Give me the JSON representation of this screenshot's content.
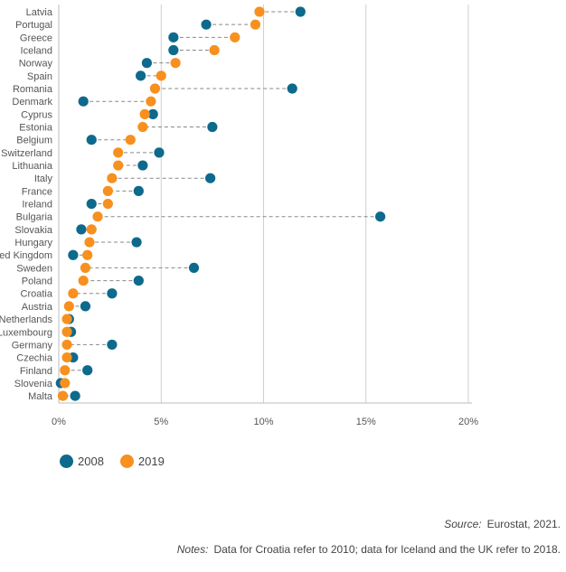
{
  "chart_data": {
    "type": "dumbbell",
    "categories": [
      "Latvia",
      "Portugal",
      "Greece",
      "Iceland",
      "Norway",
      "Spain",
      "Romania",
      "Denmark",
      "Cyprus",
      "Estonia",
      "Belgium",
      "Switzerland",
      "Lithuania",
      "Italy",
      "France",
      "Ireland",
      "Bulgaria",
      "Slovakia",
      "Hungary",
      "United Kingdom",
      "Sweden",
      "Poland",
      "Croatia",
      "Austria",
      "Netherlands",
      "Luxembourg",
      "Germany",
      "Czechia",
      "Finland",
      "Slovenia",
      "Malta"
    ],
    "series": [
      {
        "name": "2008",
        "color": "#0d6a8c",
        "values": [
          11.8,
          7.2,
          5.6,
          5.6,
          4.3,
          4.0,
          11.4,
          1.2,
          4.6,
          7.5,
          1.6,
          4.9,
          4.1,
          7.4,
          3.9,
          1.6,
          15.7,
          1.1,
          3.8,
          0.7,
          6.6,
          3.9,
          2.6,
          1.3,
          0.5,
          0.6,
          2.6,
          0.7,
          1.4,
          0.1,
          0.8
        ]
      },
      {
        "name": "2019",
        "color": "#f7901e",
        "values": [
          9.8,
          9.6,
          8.6,
          7.6,
          5.7,
          5.0,
          4.7,
          4.5,
          4.2,
          4.1,
          3.5,
          2.9,
          2.9,
          2.6,
          2.4,
          2.4,
          1.9,
          1.6,
          1.5,
          1.4,
          1.3,
          1.2,
          0.7,
          0.5,
          0.4,
          0.4,
          0.4,
          0.4,
          0.3,
          0.3,
          0.2
        ]
      }
    ],
    "xlim": [
      0,
      20
    ],
    "xticks": [
      "0%",
      "5%",
      "10%",
      "15%",
      "20%"
    ],
    "grid": "vertical",
    "legend": "bottom-left"
  },
  "footer": {
    "source_label": "Source:",
    "source_text": "Eurostat, 2021.",
    "notes_label": "Notes:",
    "notes_text": "Data for Croatia refer to 2010; data for Iceland and the UK refer to 2018."
  }
}
